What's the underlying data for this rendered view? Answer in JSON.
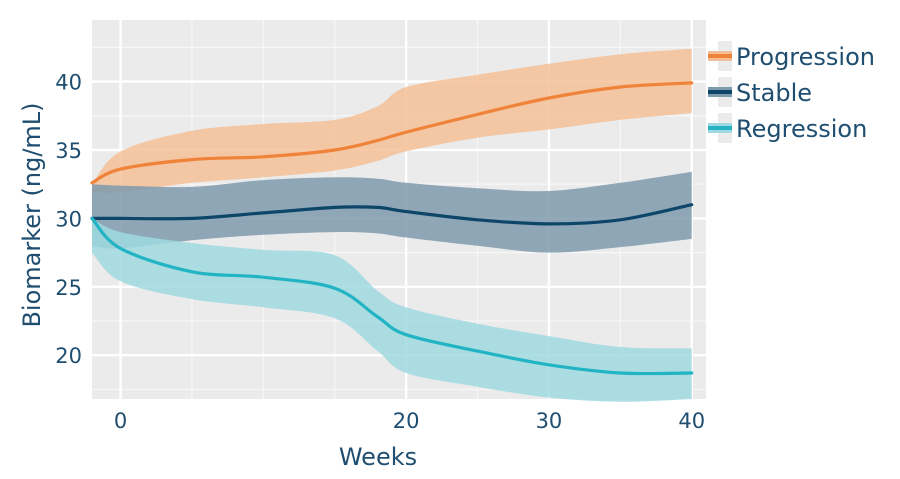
{
  "chart_data": {
    "type": "line",
    "xlabel": "Weeks",
    "ylabel": "Biomarker (ng/mL)",
    "xlim": [
      -2,
      41
    ],
    "ylim": [
      16.8,
      44.5
    ],
    "x_ticks": [
      0,
      20,
      30,
      40
    ],
    "y_ticks": [
      20,
      25,
      30,
      35,
      40
    ],
    "grid": true,
    "legend_position": "right",
    "x": [
      -2,
      0,
      5,
      10,
      15,
      18,
      20,
      25,
      30,
      35,
      40
    ],
    "series": [
      {
        "name": "Progression",
        "color": "#f0833a",
        "band_color": "#f4bf98",
        "values": [
          32.6,
          33.6,
          34.3,
          34.5,
          35.0,
          35.7,
          36.3,
          37.6,
          38.8,
          39.6,
          39.9
        ],
        "lower": [
          31.9,
          31.9,
          32.6,
          33.0,
          33.5,
          34.2,
          34.9,
          35.9,
          36.5,
          37.2,
          37.7
        ],
        "upper": [
          32.5,
          34.9,
          36.4,
          36.9,
          37.2,
          38.2,
          39.6,
          40.5,
          41.3,
          42.0,
          42.4
        ]
      },
      {
        "name": "Stable",
        "color": "#0d4669",
        "band_color": "#7e9aad",
        "values": [
          30.0,
          30.0,
          30.0,
          30.4,
          30.8,
          30.8,
          30.5,
          29.9,
          29.6,
          29.9,
          31.0
        ],
        "lower": [
          28.0,
          27.8,
          28.4,
          28.8,
          29.0,
          28.9,
          28.6,
          28.0,
          27.5,
          27.9,
          28.5
        ],
        "upper": [
          32.5,
          32.4,
          32.3,
          32.8,
          33.0,
          32.9,
          32.6,
          32.2,
          32.0,
          32.6,
          33.4
        ]
      },
      {
        "name": "Regression",
        "color": "#22b4c4",
        "band_color": "#9fd9e1",
        "values": [
          30.0,
          27.8,
          26.1,
          25.7,
          24.9,
          22.8,
          21.5,
          20.3,
          19.3,
          18.7,
          18.7
        ],
        "lower": [
          27.5,
          25.4,
          24.1,
          23.5,
          22.7,
          20.3,
          18.7,
          17.7,
          16.9,
          16.6,
          16.8
        ],
        "upper": [
          30.0,
          29.0,
          28.2,
          27.7,
          27.3,
          24.7,
          23.5,
          22.3,
          21.4,
          20.6,
          20.5
        ]
      }
    ]
  }
}
